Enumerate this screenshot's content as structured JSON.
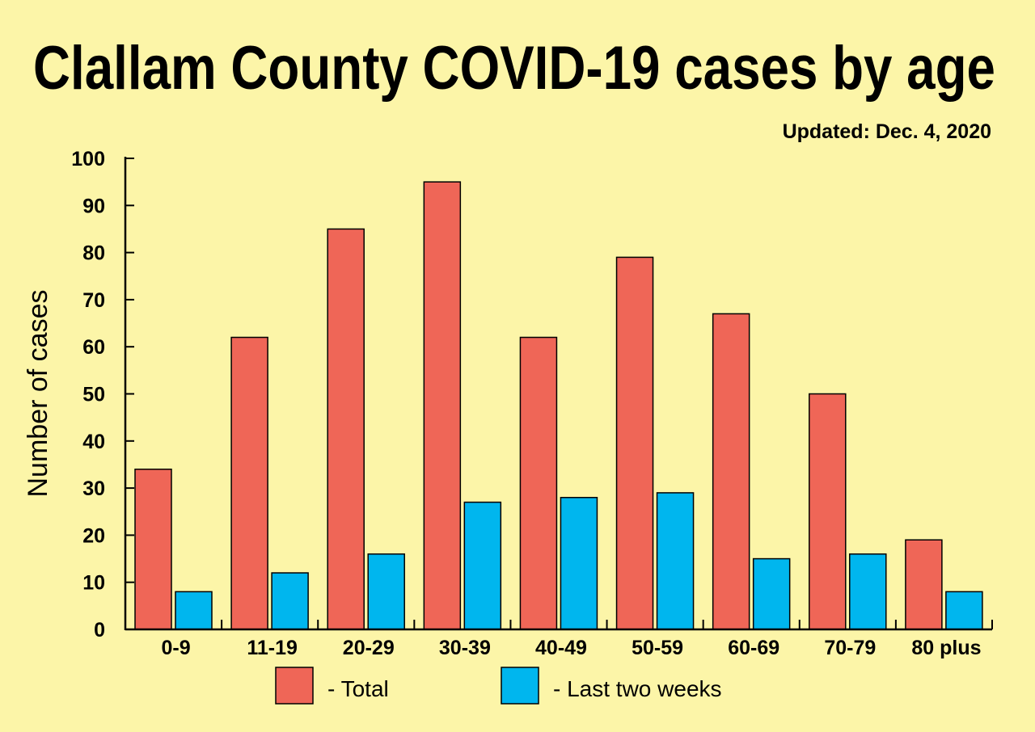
{
  "chart_data": {
    "type": "bar",
    "title": "Clallam County COVID-19 cases by age",
    "subtitle": "Updated: Dec. 4, 2020",
    "xlabel": "",
    "ylabel": "Number of cases",
    "ylim": [
      0,
      100
    ],
    "yticks": [
      0,
      10,
      20,
      30,
      40,
      50,
      60,
      70,
      80,
      90,
      100
    ],
    "grid": false,
    "legend_position": "bottom",
    "categories": [
      "0-9",
      "11-19",
      "20-29",
      "30-39",
      "40-49",
      "50-59",
      "60-69",
      "70-79",
      "80 plus"
    ],
    "series": [
      {
        "name": "- Total",
        "color": "#ef6657",
        "values": [
          34,
          62,
          85,
          95,
          62,
          79,
          67,
          50,
          19
        ]
      },
      {
        "name": "- Last two weeks",
        "color": "#00b6ee",
        "values": [
          8,
          12,
          16,
          27,
          28,
          29,
          15,
          16,
          8
        ]
      }
    ],
    "background": "#fcf5a8"
  }
}
